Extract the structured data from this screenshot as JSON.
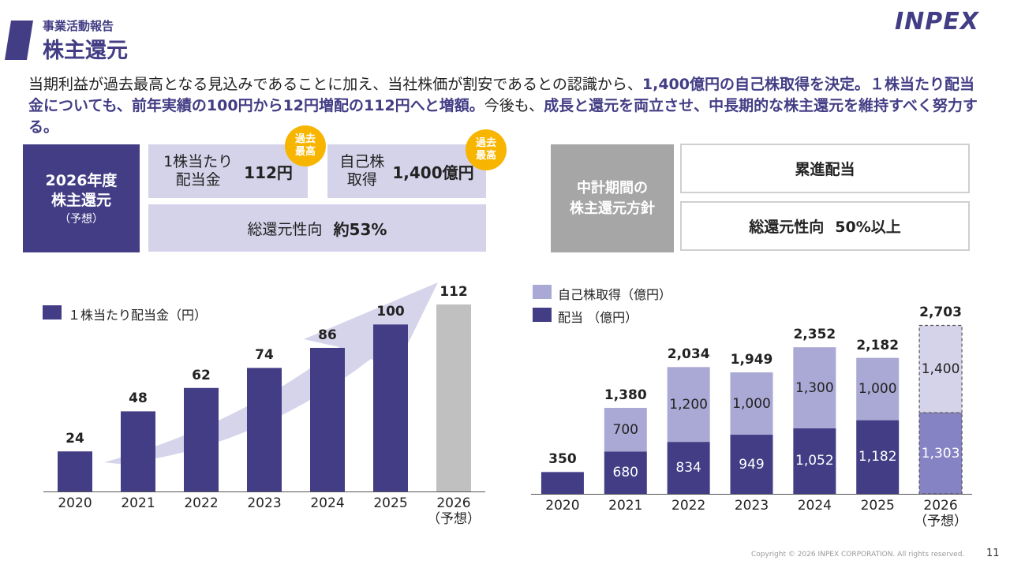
{
  "header": {
    "section": "事業活動報告",
    "title": "株主還元",
    "logo": "INPEX"
  },
  "summary": [
    {
      "text": "当期利益が過去最高となる見込みであることに加え、当社株価が割安であるとの認識から、",
      "strong": false
    },
    {
      "text": "1,400億円の自己株取得を決定。",
      "strong": true
    },
    {
      "text": "１株当たり配当金についても、前年実績の100円から12円増配の112円へと増額。",
      "strong": true
    },
    {
      "text": "今後も、",
      "strong": false
    },
    {
      "text": "成長と還元を両立させ、中長期的な株主還元を維持すべく努力する。",
      "strong": true
    }
  ],
  "forecast": {
    "title": "2026年度\n株主還元",
    "note": "（予想）",
    "dividend": {
      "label": "1株当たり\n配当金",
      "value": "112円",
      "badge": "過去\n最高"
    },
    "buyback": {
      "label": "自己株\n取得",
      "value": "1,400億円",
      "badge": "過去\n最高"
    },
    "payout": {
      "label": "総還元性向",
      "value": "約53%"
    }
  },
  "policy": {
    "title": "中計期間の\n株主還元方針",
    "items": [
      {
        "label": "累進配当"
      },
      {
        "label": "総還元性向",
        "value": "50%以上"
      }
    ]
  },
  "chart_data": [
    {
      "type": "bar",
      "categories": [
        "2020",
        "2021",
        "2022",
        "2023",
        "2024",
        "2025",
        "2026\n（予想）"
      ],
      "series": [
        {
          "name": "１株当たり配当金（円）",
          "colors": [
            "#433d85",
            "#433d85",
            "#433d85",
            "#433d85",
            "#433d85",
            "#433d85",
            "#c0c0c0"
          ],
          "values": [
            24,
            48,
            62,
            74,
            86,
            100,
            112
          ]
        }
      ],
      "ylim": [
        0,
        120
      ]
    },
    {
      "type": "bar",
      "stacked": true,
      "categories": [
        "2020",
        "2021",
        "2022",
        "2023",
        "2024",
        "2025",
        "2026\n（予想）"
      ],
      "series": [
        {
          "name": "配当 （億円）",
          "label_color": "#ffffff",
          "colors": [
            "#433d85",
            "#433d85",
            "#433d85",
            "#433d85",
            "#433d85",
            "#433d85",
            "#8683c4"
          ],
          "values": [
            350,
            680,
            834,
            949,
            1052,
            1182,
            1303
          ],
          "value_labels": [
            null,
            "680",
            "834",
            "949",
            "1,052",
            "1,182",
            "1,303"
          ]
        },
        {
          "name": "自己株取得（億円）",
          "label_color": "#222222",
          "colors": [
            null,
            "#aaa8d4",
            "#aaa8d4",
            "#aaa8d4",
            "#aaa8d4",
            "#aaa8d4",
            "#d5d3ea"
          ],
          "values": [
            null,
            700,
            1200,
            1000,
            1300,
            1000,
            1400
          ],
          "value_labels": [
            null,
            "700",
            "1,200",
            "1,000",
            "1,300",
            "1,000",
            "1,400"
          ]
        }
      ],
      "totals": [
        350,
        1380,
        2034,
        1949,
        2352,
        2182,
        2703
      ],
      "total_labels": [
        "350",
        "1,380",
        "2,034",
        "1,949",
        "2,352",
        "2,182",
        "2,703"
      ],
      "dashed_last": true,
      "legend_reversed": true,
      "ylim": [
        0,
        3000
      ]
    }
  ],
  "footer": {
    "copyright": "Copyright © 2026 INPEX CORPORATION. All rights reserved.",
    "page": "11"
  }
}
